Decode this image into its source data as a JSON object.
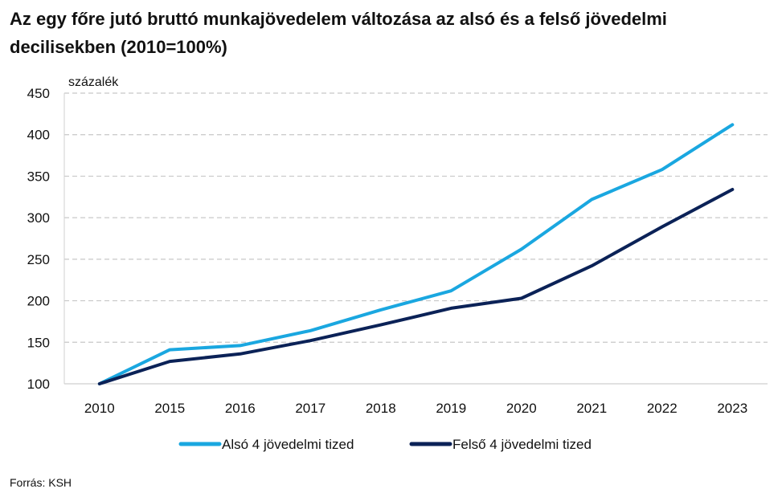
{
  "title": "Az egy főre jutó bruttó munkajövedelem változása az alsó és a felső jövedelmi decilisekben (2010=100%)",
  "source": "Forrás: KSH",
  "chart_data": {
    "type": "line",
    "title": "Az egy főre jutó bruttó munkajövedelem változása az alsó és a felső jövedelmi decilisekben (2010=100%)",
    "ylabel": "százalék",
    "xlabel": "",
    "ylim": [
      100,
      450
    ],
    "yticks": [
      100,
      150,
      200,
      250,
      300,
      350,
      400,
      450
    ],
    "grid": true,
    "legend_position": "bottom",
    "categories": [
      "2010",
      "2015",
      "2016",
      "2017",
      "2018",
      "2019",
      "2020",
      "2021",
      "2022",
      "2023"
    ],
    "series": [
      {
        "name": "Alsó 4 jövedelmi tized",
        "color": "#1aa7e0",
        "values": [
          100,
          141,
          146,
          164,
          189,
          212,
          262,
          322,
          358,
          412
        ]
      },
      {
        "name": "Felső 4 jövedelmi tized",
        "color": "#0b2257",
        "values": [
          100,
          127,
          136,
          152,
          171,
          191,
          203,
          242,
          289,
          334
        ]
      }
    ]
  }
}
